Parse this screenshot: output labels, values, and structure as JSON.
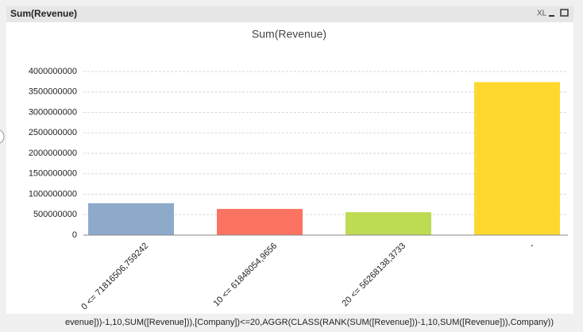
{
  "window": {
    "caption": "Sum(Revenue)",
    "xl_label": "XL"
  },
  "chart_data": {
    "type": "bar",
    "title": "Sum(Revenue)",
    "categories": [
      "0 <= 71816506,759242",
      "10 <= 61848054,9656",
      "20 <= 56268138,3733",
      "-"
    ],
    "values": [
      780000000,
      640000000,
      560000000,
      3740000000
    ],
    "colors": [
      "#8eaacb",
      "#fc7362",
      "#bedb54",
      "#fed82f"
    ],
    "x_label": "evenue]))-1,10,SUM([Revenue])),[Company])<=20,AGGR(CLASS(RANK(SUM([Revenue]))-1,10,SUM([Revenue])),Company))",
    "ylim": [
      0,
      4000000000
    ],
    "yticks": [
      0,
      500000000,
      1000000000,
      1500000000,
      2000000000,
      2500000000,
      3000000000,
      3500000000,
      4000000000
    ],
    "grid": true
  }
}
